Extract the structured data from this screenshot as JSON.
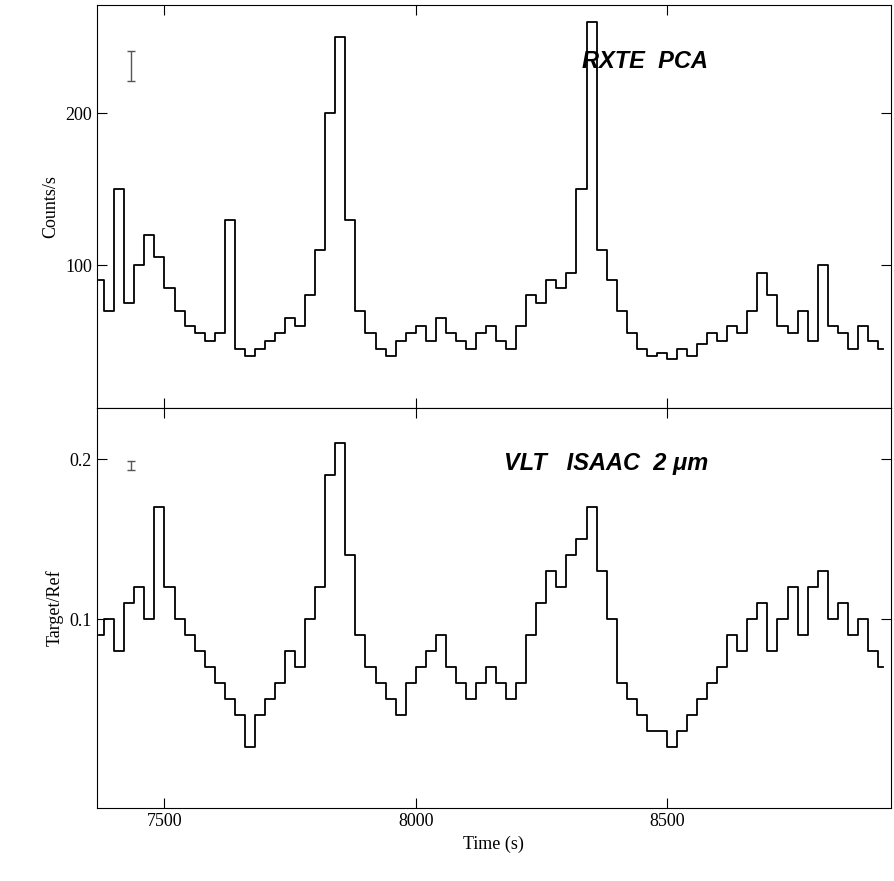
{
  "chart_data": [
    {
      "type": "line",
      "annotation": "RXTE  PCA",
      "ylabel": "Counts/s",
      "color": "#000000",
      "line_style": "steps",
      "tick_labels": "y",
      "x": [
        7370,
        7390,
        7410,
        7430,
        7450,
        7470,
        7490,
        7510,
        7530,
        7550,
        7570,
        7590,
        7610,
        7630,
        7650,
        7670,
        7690,
        7710,
        7730,
        7750,
        7770,
        7790,
        7810,
        7830,
        7850,
        7870,
        7890,
        7910,
        7930,
        7950,
        7970,
        7990,
        8010,
        8030,
        8050,
        8070,
        8090,
        8110,
        8130,
        8150,
        8170,
        8190,
        8210,
        8230,
        8250,
        8270,
        8290,
        8310,
        8330,
        8350,
        8370,
        8390,
        8410,
        8430,
        8450,
        8470,
        8490,
        8510,
        8530,
        8550,
        8570,
        8590,
        8610,
        8630,
        8650,
        8670,
        8690,
        8710,
        8730,
        8750,
        8770,
        8790,
        8810,
        8830,
        8850,
        8870,
        8890,
        8910,
        8930
      ],
      "values": [
        90,
        70,
        150,
        75,
        100,
        120,
        105,
        85,
        70,
        60,
        55,
        50,
        55,
        130,
        45,
        40,
        45,
        50,
        55,
        65,
        60,
        80,
        110,
        200,
        250,
        130,
        70,
        55,
        45,
        40,
        50,
        55,
        60,
        50,
        65,
        55,
        50,
        45,
        55,
        60,
        50,
        45,
        60,
        80,
        75,
        90,
        85,
        95,
        150,
        260,
        110,
        90,
        70,
        55,
        45,
        40,
        42,
        38,
        45,
        40,
        48,
        55,
        50,
        60,
        55,
        70,
        95,
        80,
        60,
        55,
        70,
        50,
        100,
        60,
        55,
        45,
        60,
        50,
        45
      ],
      "error_bar": {
        "x": 7434,
        "y": 231,
        "error": 10
      },
      "xlim": [
        7365,
        8945
      ],
      "xticks": [
        7500,
        8000,
        8500
      ],
      "ylim": [
        6,
        271
      ],
      "yticks": [
        100,
        200
      ]
    },
    {
      "type": "line",
      "annotation": "VLT   ISAAC  2 μm",
      "ylabel": "Target/Ref",
      "xlabel": "Time (s)",
      "color": "#000000",
      "line_style": "steps",
      "x": [
        7370,
        7390,
        7410,
        7430,
        7450,
        7470,
        7490,
        7510,
        7530,
        7550,
        7570,
        7590,
        7610,
        7630,
        7650,
        7670,
        7690,
        7710,
        7730,
        7750,
        7770,
        7790,
        7810,
        7830,
        7850,
        7870,
        7890,
        7910,
        7930,
        7950,
        7970,
        7990,
        8010,
        8030,
        8050,
        8070,
        8090,
        8110,
        8130,
        8150,
        8170,
        8190,
        8210,
        8230,
        8250,
        8270,
        8290,
        8310,
        8330,
        8350,
        8370,
        8390,
        8410,
        8430,
        8450,
        8470,
        8490,
        8510,
        8530,
        8550,
        8570,
        8590,
        8610,
        8630,
        8650,
        8670,
        8690,
        8710,
        8730,
        8750,
        8770,
        8790,
        8810,
        8830,
        8850,
        8870,
        8890,
        8910,
        8930
      ],
      "values": [
        0.09,
        0.1,
        0.08,
        0.11,
        0.12,
        0.1,
        0.17,
        0.12,
        0.1,
        0.09,
        0.08,
        0.07,
        0.06,
        0.05,
        0.04,
        0.02,
        0.04,
        0.05,
        0.06,
        0.08,
        0.07,
        0.1,
        0.12,
        0.19,
        0.21,
        0.14,
        0.09,
        0.07,
        0.06,
        0.05,
        0.04,
        0.06,
        0.07,
        0.08,
        0.09,
        0.07,
        0.06,
        0.05,
        0.06,
        0.07,
        0.06,
        0.05,
        0.06,
        0.09,
        0.11,
        0.13,
        0.12,
        0.14,
        0.15,
        0.17,
        0.13,
        0.1,
        0.06,
        0.05,
        0.04,
        0.03,
        0.03,
        0.02,
        0.03,
        0.04,
        0.05,
        0.06,
        0.07,
        0.09,
        0.08,
        0.1,
        0.11,
        0.08,
        0.1,
        0.12,
        0.09,
        0.12,
        0.13,
        0.1,
        0.11,
        0.09,
        0.1,
        0.08,
        0.07
      ],
      "error_bar": {
        "x": 7434,
        "y": 0.196,
        "error": 0.003
      },
      "xlim": [
        7365,
        8945
      ],
      "xticks": [
        7500,
        8000,
        8500
      ],
      "ylim": [
        -0.018,
        0.232
      ],
      "yticks": [
        0.1,
        0.2
      ]
    }
  ]
}
